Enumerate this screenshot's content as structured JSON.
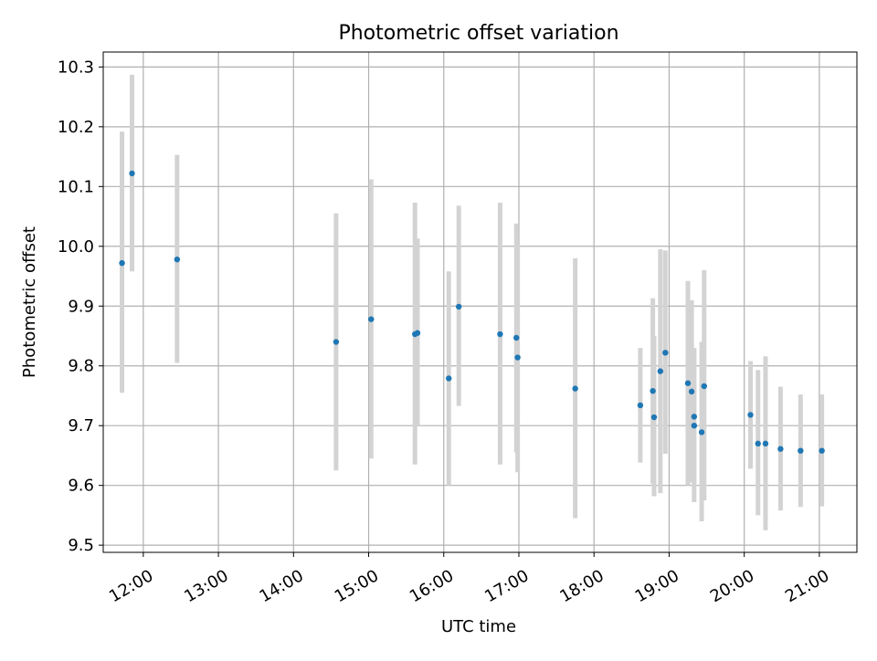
{
  "chart_data": {
    "type": "scatter",
    "title": "Photometric offset variation",
    "xlabel": "UTC time",
    "ylabel": "Photometric offset",
    "x_tick_labels": [
      "12:00",
      "13:00",
      "14:00",
      "15:00",
      "16:00",
      "17:00",
      "18:00",
      "19:00",
      "20:00",
      "21:00"
    ],
    "y_tick_labels": [
      "9.5",
      "9.6",
      "9.7",
      "9.8",
      "9.9",
      "10.0",
      "10.1",
      "10.2",
      "10.3"
    ],
    "xlim": [
      "11:28",
      "21:30"
    ],
    "ylim": [
      9.488,
      10.325
    ],
    "grid": true,
    "legend": "none",
    "colors": {
      "marker": "#1f77b4",
      "errorbar": "#d3d3d3",
      "grid": "#b0b0b0"
    },
    "points": [
      {
        "t": "11:43",
        "y": 9.972,
        "lo": 9.755,
        "hi": 10.192
      },
      {
        "t": "11:51",
        "y": 10.122,
        "lo": 9.958,
        "hi": 10.287
      },
      {
        "t": "12:27",
        "y": 9.978,
        "lo": 9.805,
        "hi": 10.153
      },
      {
        "t": "14:34",
        "y": 9.84,
        "lo": 9.625,
        "hi": 10.055
      },
      {
        "t": "15:02",
        "y": 9.878,
        "lo": 9.645,
        "hi": 10.112
      },
      {
        "t": "15:37",
        "y": 9.853,
        "lo": 9.635,
        "hi": 10.073
      },
      {
        "t": "15:39",
        "y": 9.855,
        "lo": 9.7,
        "hi": 10.013
      },
      {
        "t": "16:04",
        "y": 9.779,
        "lo": 9.6,
        "hi": 9.958
      },
      {
        "t": "16:12",
        "y": 9.899,
        "lo": 9.733,
        "hi": 10.068
      },
      {
        "t": "16:45",
        "y": 9.853,
        "lo": 9.635,
        "hi": 10.073
      },
      {
        "t": "16:58",
        "y": 9.847,
        "lo": 9.655,
        "hi": 10.038
      },
      {
        "t": "16:59",
        "y": 9.814,
        "lo": 9.622,
        "hi": 10.005
      },
      {
        "t": "17:45",
        "y": 9.762,
        "lo": 9.545,
        "hi": 9.98
      },
      {
        "t": "18:37",
        "y": 9.734,
        "lo": 9.638,
        "hi": 9.83
      },
      {
        "t": "18:47",
        "y": 9.758,
        "lo": 9.603,
        "hi": 9.913
      },
      {
        "t": "18:48",
        "y": 9.714,
        "lo": 9.582,
        "hi": 9.85
      },
      {
        "t": "18:53",
        "y": 9.791,
        "lo": 9.587,
        "hi": 9.995
      },
      {
        "t": "18:57",
        "y": 9.822,
        "lo": 9.653,
        "hi": 9.993
      },
      {
        "t": "19:15",
        "y": 9.771,
        "lo": 9.6,
        "hi": 9.942
      },
      {
        "t": "19:18",
        "y": 9.757,
        "lo": 9.605,
        "hi": 9.91
      },
      {
        "t": "19:20",
        "y": 9.715,
        "lo": 9.6,
        "hi": 9.83
      },
      {
        "t": "19:20",
        "y": 9.7,
        "lo": 9.572,
        "hi": 9.828
      },
      {
        "t": "19:26",
        "y": 9.689,
        "lo": 9.54,
        "hi": 9.84
      },
      {
        "t": "19:28",
        "y": 9.766,
        "lo": 9.575,
        "hi": 9.96
      },
      {
        "t": "20:05",
        "y": 9.718,
        "lo": 9.628,
        "hi": 9.808
      },
      {
        "t": "20:11",
        "y": 9.67,
        "lo": 9.55,
        "hi": 9.793
      },
      {
        "t": "20:17",
        "y": 9.67,
        "lo": 9.525,
        "hi": 9.816
      },
      {
        "t": "20:29",
        "y": 9.661,
        "lo": 9.558,
        "hi": 9.765
      },
      {
        "t": "20:45",
        "y": 9.658,
        "lo": 9.564,
        "hi": 9.752
      },
      {
        "t": "21:02",
        "y": 9.658,
        "lo": 9.565,
        "hi": 9.752
      }
    ]
  }
}
